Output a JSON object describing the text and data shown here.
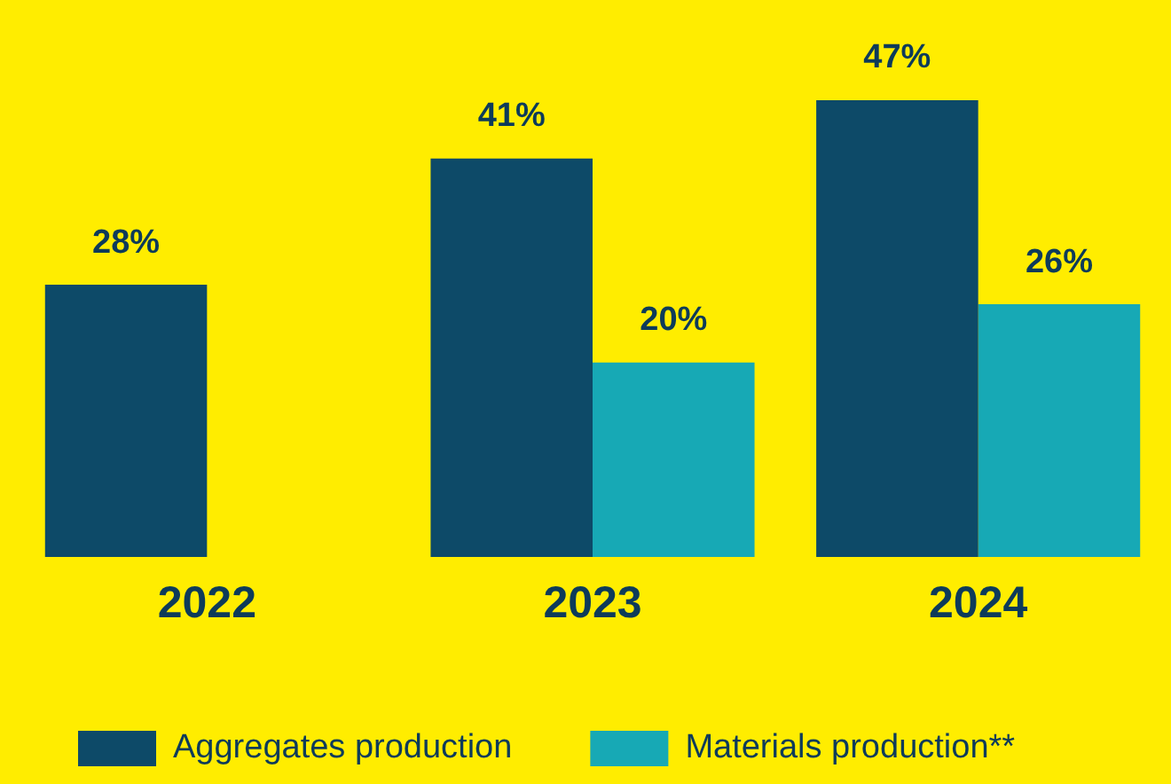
{
  "chart_data": {
    "type": "bar",
    "categories": [
      "2022",
      "2023",
      "2024"
    ],
    "series": [
      {
        "name": "Aggregates production",
        "color": "#0d4a68",
        "values": [
          28,
          41,
          47
        ],
        "value_labels": [
          "28%",
          "41%",
          "47%"
        ]
      },
      {
        "name": "Materials production**",
        "color": "#17a9b5",
        "values": [
          null,
          20,
          26
        ],
        "value_labels": [
          null,
          "20%",
          "26%"
        ]
      }
    ],
    "legend": "bottom left",
    "grid": false,
    "relative": false
  }
}
